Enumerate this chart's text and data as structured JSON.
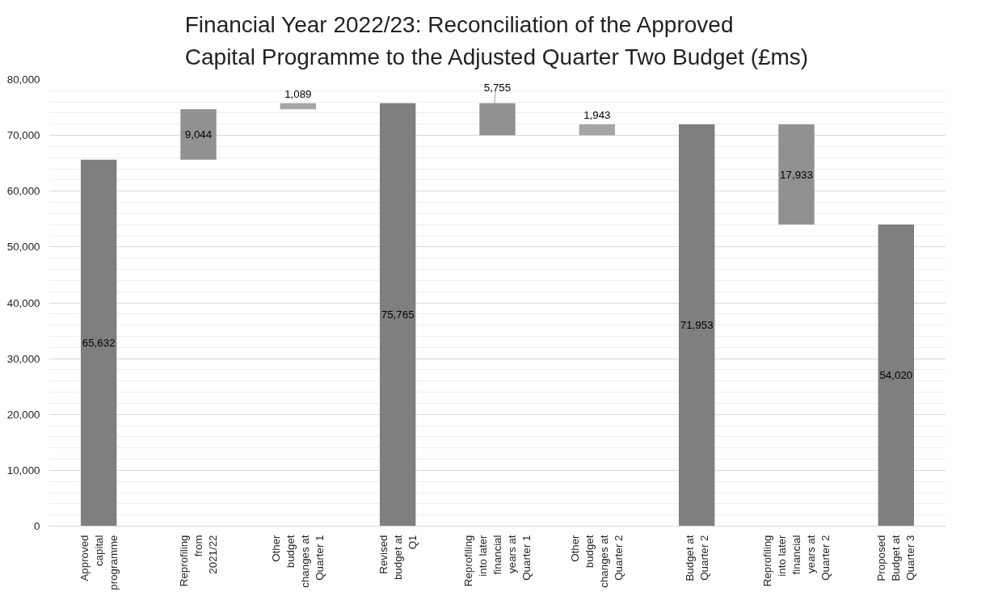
{
  "chart_data": {
    "type": "bar",
    "title": "Financial Year 2022/23:  Reconciliation of the Approved Capital Programme to the Adjusted Quarter Two Budget (£ms)",
    "categories": [
      "Approved capital programme",
      "Reprofiling from 2021/22",
      "Other budget changes at Quarter 1",
      "Revised budget at Q1",
      "Reprofiling into later financial years at Quarter 1",
      "Other budget changes at Quarter 2",
      "Budget at Quarter 2",
      "Reprofiling into later financial years at Quarter 2",
      "Proposed Budget at Quarter 3"
    ],
    "values": [
      65632,
      9044,
      1089,
      75765,
      5755,
      1943,
      71953,
      17933,
      54020
    ],
    "base": [
      0,
      65632,
      74676,
      0,
      70010,
      70010,
      0,
      54020,
      0
    ],
    "colors": [
      "#7f7f7f",
      "#919191",
      "#a5a5a5",
      "#7f7f7f",
      "#919191",
      "#a5a5a5",
      "#7f7f7f",
      "#919191",
      "#7f7f7f"
    ],
    "value_labels": [
      "65,632",
      "9,044",
      "1,089",
      "75,765",
      "5,755",
      "1,943",
      "71,953",
      "17,933",
      "54,020"
    ],
    "ylim": [
      0,
      80000
    ],
    "yticks": [
      {
        "value": 0,
        "label": "0"
      },
      {
        "value": 10000,
        "label": "10,000"
      },
      {
        "value": 20000,
        "label": "20,000"
      },
      {
        "value": 30000,
        "label": "30,000"
      },
      {
        "value": 40000,
        "label": "40,000"
      },
      {
        "value": 50000,
        "label": "50,000"
      },
      {
        "value": 60000,
        "label": "60,000"
      },
      {
        "value": 70000,
        "label": "70,000"
      },
      {
        "value": 80000,
        "label": "80,000"
      }
    ],
    "grid": "y"
  }
}
